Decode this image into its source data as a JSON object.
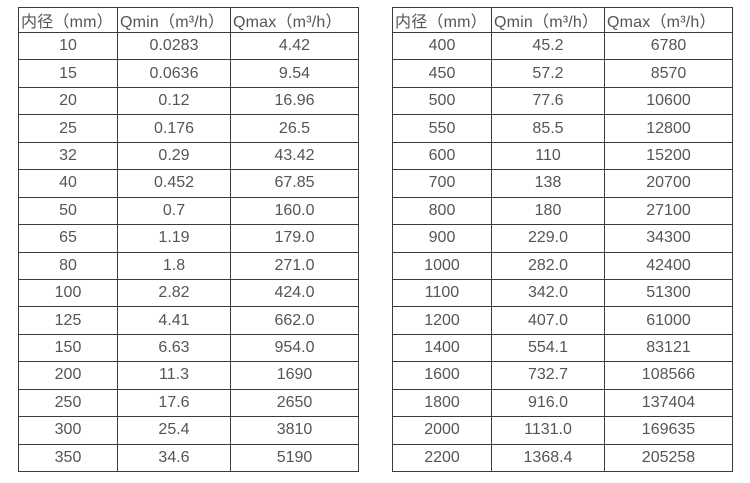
{
  "colors": {
    "background": "#ffffff",
    "border": "#3b3b3b",
    "text": "#555555"
  },
  "table_headers": {
    "diameter": "内径（mm）",
    "qmin": "Qmin（m³/h）",
    "qmax": "Qmax（m³/h）"
  },
  "chart_data": {
    "type": "table",
    "columns": [
      "内径（mm）",
      "Qmin（m³/h）",
      "Qmax（m³/h）"
    ],
    "tables": [
      {
        "rows": [
          [
            "10",
            "0.0283",
            "4.42"
          ],
          [
            "15",
            "0.0636",
            "9.54"
          ],
          [
            "20",
            "0.12",
            "16.96"
          ],
          [
            "25",
            "0.176",
            "26.5"
          ],
          [
            "32",
            "0.29",
            "43.42"
          ],
          [
            "40",
            "0.452",
            "67.85"
          ],
          [
            "50",
            "0.7",
            "160.0"
          ],
          [
            "65",
            "1.19",
            "179.0"
          ],
          [
            "80",
            "1.8",
            "271.0"
          ],
          [
            "100",
            "2.82",
            "424.0"
          ],
          [
            "125",
            "4.41",
            "662.0"
          ],
          [
            "150",
            "6.63",
            "954.0"
          ],
          [
            "200",
            "11.3",
            "1690"
          ],
          [
            "250",
            "17.6",
            "2650"
          ],
          [
            "300",
            "25.4",
            "3810"
          ],
          [
            "350",
            "34.6",
            "5190"
          ]
        ]
      },
      {
        "rows": [
          [
            "400",
            "45.2",
            "6780"
          ],
          [
            "450",
            "57.2",
            "8570"
          ],
          [
            "500",
            "77.6",
            "10600"
          ],
          [
            "550",
            "85.5",
            "12800"
          ],
          [
            "600",
            "110",
            "15200"
          ],
          [
            "700",
            "138",
            "20700"
          ],
          [
            "800",
            "180",
            "27100"
          ],
          [
            "900",
            "229.0",
            "34300"
          ],
          [
            "1000",
            "282.0",
            "42400"
          ],
          [
            "1100",
            "342.0",
            "51300"
          ],
          [
            "1200",
            "407.0",
            "61000"
          ],
          [
            "1400",
            "554.1",
            "83121"
          ],
          [
            "1600",
            "732.7",
            "108566"
          ],
          [
            "1800",
            "916.0",
            "137404"
          ],
          [
            "2000",
            "1131.0",
            "169635"
          ],
          [
            "2200",
            "1368.4",
            "205258"
          ]
        ]
      }
    ]
  }
}
